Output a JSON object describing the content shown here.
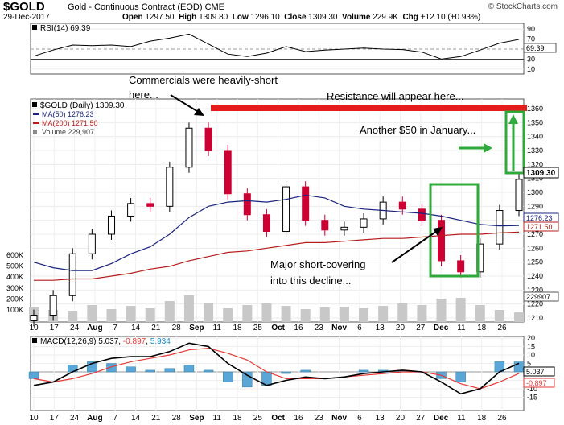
{
  "header": {
    "symbol": "$GOLD",
    "name": "Gold - Continuous Contract (EOD)",
    "exchange": "CME",
    "date": "29-Dec-2017",
    "open_label": "Open",
    "open": "1297.50",
    "high_label": "High",
    "high": "1309.80",
    "low_label": "Low",
    "low": "1296.10",
    "close_label": "Close",
    "close": "1309.30",
    "volume_label": "Volume",
    "volume": "229.9K",
    "chg_label": "Chg",
    "chg": "+12.10 (+0.93%)",
    "copyright": "© StockCharts.com"
  },
  "rsi_panel": {
    "legend": "RSI(14) 69.39",
    "ticks": [
      "90",
      "70",
      "50",
      "30",
      "10"
    ],
    "last_badge": "69.39"
  },
  "price_panel": {
    "legend_title": "$GOLD (Daily) 1309.30",
    "ma50_legend": "MA(50) 1276.23",
    "ma200_legend": "MA(200) 1271.50",
    "volume_legend": "Volume 229,907",
    "ticks": [
      "1360",
      "1350",
      "1340",
      "1330",
      "1320",
      "1310",
      "1300",
      "1290",
      "1280",
      "1270",
      "1260",
      "1250",
      "1240",
      "1230",
      "1220",
      "1210"
    ],
    "volume_ticks": [
      "600K",
      "500K",
      "400K",
      "300K",
      "200K",
      "100K"
    ],
    "badge_close": "1309.30",
    "badge_ma50": "1276.23",
    "badge_ma200": "1271.50",
    "badge_volume": "229907",
    "colors": {
      "up": "#000000",
      "down": "#cc0033",
      "ma50": "#1a237e",
      "ma200": "#b71c1c",
      "volume": "#b8b8b8",
      "resistance": "#e51c1c",
      "annot_green": "#2eaa3a"
    }
  },
  "annotations": {
    "commercials": [
      "Commercials were heavily-short",
      "here..."
    ],
    "resistance": "Resistance will appear here...",
    "another": "Another $50 in January...",
    "short_cover": [
      "Major short-covering",
      "into this decline..."
    ]
  },
  "macd_panel": {
    "legend_name": "MACD(12,26,9)",
    "legend_macd": "5.037",
    "legend_signal": "-0.897",
    "legend_hist": "5.934",
    "ticks": [
      "20",
      "15",
      "10",
      "5",
      "0",
      "-5",
      "-10",
      "-15"
    ],
    "badge_macd": "5.037",
    "badge_signal": "-0.897"
  },
  "x_axis": {
    "labels": [
      {
        "t": "10",
        "bold": false
      },
      {
        "t": "17",
        "bold": false
      },
      {
        "t": "24",
        "bold": false
      },
      {
        "t": "Aug",
        "bold": true
      },
      {
        "t": "7",
        "bold": false
      },
      {
        "t": "14",
        "bold": false
      },
      {
        "t": "21",
        "bold": false
      },
      {
        "t": "28",
        "bold": false
      },
      {
        "t": "Sep",
        "bold": true
      },
      {
        "t": "11",
        "bold": false
      },
      {
        "t": "18",
        "bold": false
      },
      {
        "t": "25",
        "bold": false
      },
      {
        "t": "Oct",
        "bold": true
      },
      {
        "t": "16",
        "bold": false
      },
      {
        "t": "23",
        "bold": false
      },
      {
        "t": "Nov",
        "bold": true
      },
      {
        "t": "6",
        "bold": false
      },
      {
        "t": "13",
        "bold": false
      },
      {
        "t": "20",
        "bold": false
      },
      {
        "t": "27",
        "bold": false
      },
      {
        "t": "Dec",
        "bold": true
      },
      {
        "t": "11",
        "bold": false
      },
      {
        "t": "18",
        "bold": false
      },
      {
        "t": "26",
        "bold": false
      }
    ]
  },
  "chart_data": {
    "type": "line",
    "title": "$GOLD Gold - Continuous Contract (EOD)",
    "x": [
      "Jul 10",
      "Jul 17",
      "Jul 24",
      "Jul 31",
      "Aug 7",
      "Aug 14",
      "Aug 21",
      "Aug 28",
      "Sep 4",
      "Sep 11",
      "Sep 18",
      "Sep 25",
      "Oct 2",
      "Oct 9",
      "Oct 16",
      "Oct 23",
      "Oct 30",
      "Nov 6",
      "Nov 13",
      "Nov 20",
      "Nov 27",
      "Dec 4",
      "Dec 11",
      "Dec 18",
      "Dec 26",
      "Dec 29"
    ],
    "series": [
      {
        "name": "Close",
        "values": [
          1212,
          1226,
          1256,
          1270,
          1283,
          1292,
          1290,
          1318,
          1346,
          1330,
          1299,
          1284,
          1272,
          1304,
          1280,
          1273,
          1275,
          1281,
          1293,
          1288,
          1280,
          1251,
          1243,
          1263,
          1287,
          1309.3
        ]
      },
      {
        "name": "MA(50)",
        "values": [
          1250,
          1246,
          1244,
          1244,
          1249,
          1256,
          1261,
          1270,
          1282,
          1290,
          1293,
          1294,
          1293,
          1295,
          1298,
          1296,
          1290,
          1288,
          1287,
          1286,
          1285,
          1283,
          1280,
          1277,
          1276,
          1276.23
        ]
      },
      {
        "name": "MA(200)",
        "values": [
          1237,
          1237,
          1238,
          1238,
          1240,
          1242,
          1245,
          1247,
          1251,
          1254,
          1257,
          1258,
          1260,
          1262,
          1264,
          1264,
          1265,
          1266,
          1267,
          1267,
          1268,
          1269,
          1270,
          1270,
          1271,
          1271.5
        ]
      },
      {
        "name": "RSI(14)",
        "values": [
          36,
          48,
          58,
          57,
          58,
          55,
          66,
          72,
          80,
          60,
          40,
          35,
          42,
          55,
          45,
          48,
          50,
          52,
          50,
          49,
          44,
          30,
          35,
          48,
          62,
          69.39
        ]
      },
      {
        "name": "MACD",
        "values": [
          -8,
          -6,
          0,
          5,
          8,
          9,
          9,
          12,
          17,
          15,
          5,
          -2,
          -8,
          -5,
          -3,
          -4,
          -3,
          -1,
          0,
          1,
          0,
          -6,
          -13,
          -10,
          0,
          5.037
        ]
      },
      {
        "name": "Signal",
        "values": [
          -4,
          -6,
          -4,
          -1,
          3,
          6,
          8,
          10,
          13,
          14,
          11,
          7,
          0,
          -4,
          -4,
          -4,
          -3,
          -2,
          -1,
          0,
          0,
          -2,
          -7,
          -10,
          -6,
          -0.897
        ]
      }
    ],
    "ylim": [
      1205,
      1365
    ],
    "annotations": [
      "Commercials were heavily-short here...",
      "Resistance will appear here...",
      "Another $50 in January...",
      "Major short-covering into this decline..."
    ]
  }
}
